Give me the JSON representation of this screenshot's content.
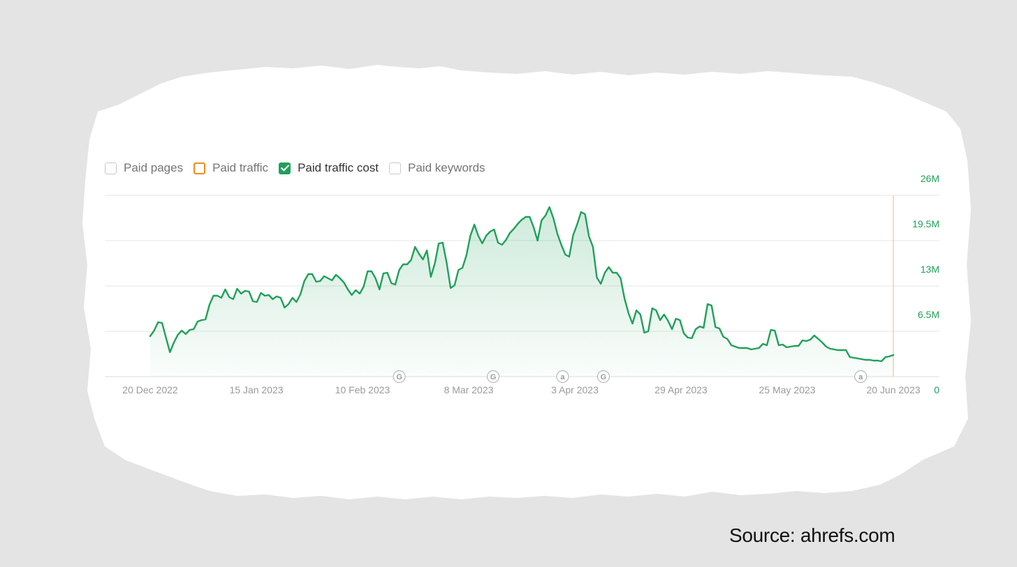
{
  "legend": {
    "items": [
      {
        "label": "Paid pages",
        "state": "unchecked",
        "color": "#c9c9c9"
      },
      {
        "label": "Paid traffic",
        "state": "unchecked",
        "color": "#f08c1c"
      },
      {
        "label": "Paid traffic cost",
        "state": "checked",
        "color": "#20a05a"
      },
      {
        "label": "Paid keywords",
        "state": "unchecked",
        "color": "#c9c9c9"
      }
    ]
  },
  "source_text": "Source: ahrefs.com",
  "colors": {
    "line": "#20a05a",
    "tick_y": "#20a05a",
    "tick_x": "#9a9a9a",
    "grid": "#e6e6e6",
    "marker_line": "#f2c48d",
    "background": "#e4e4e4",
    "card": "#ffffff"
  },
  "chart_data": {
    "type": "area",
    "series": [
      {
        "name": "Paid traffic cost",
        "x_start": "2022-12-20",
        "x_end": "2023-06-20",
        "values": [
          5.8,
          6.6,
          7.8,
          7.7,
          5.6,
          3.5,
          4.9,
          6,
          6.6,
          6.1,
          6.7,
          6.8,
          7.9,
          8.1,
          8.2,
          10.3,
          11.6,
          11.6,
          11.3,
          12.5,
          11.4,
          11.1,
          12.6,
          11.9,
          12.3,
          12.2,
          10.8,
          10.7,
          12,
          11.6,
          11.7,
          11.1,
          11.5,
          11.3,
          9.9,
          10.4,
          11.3,
          10.7,
          11.8,
          13.7,
          14.7,
          14.7,
          13.6,
          13.7,
          14.4,
          14.1,
          13.8,
          14.6,
          14.1,
          13.5,
          12.5,
          11.7,
          12.4,
          11.9,
          12.9,
          15.1,
          15.1,
          14.1,
          12.5,
          14.8,
          14.9,
          13.4,
          13.2,
          15.3,
          16.1,
          16.1,
          16.7,
          18.6,
          17.6,
          16.8,
          18.1,
          14.3,
          16.2,
          19.1,
          19.2,
          16.3,
          12.7,
          13.1,
          15.3,
          15.6,
          17.4,
          20.2,
          21.8,
          20.2,
          19.1,
          20.2,
          20.8,
          21.1,
          19.2,
          18.9,
          19.6,
          20.6,
          21.2,
          21.9,
          22.5,
          22.9,
          22.9,
          21.4,
          19.5,
          22.4,
          23.1,
          24.3,
          22.7,
          20.5,
          18.9,
          17.5,
          17.2,
          20.3,
          21.8,
          23.6,
          23.3,
          20.1,
          18.6,
          14.2,
          13.3,
          14.9,
          15.7,
          14.9,
          14.9,
          14.1,
          11.2,
          9.1,
          7.6,
          9.5,
          8.9,
          6.3,
          6.5,
          9.8,
          9.5,
          8.1,
          8.9,
          8,
          6.8,
          8.3,
          8.1,
          6.2,
          5.6,
          5.5,
          6.8,
          7.2,
          7,
          10.4,
          10.2,
          7.1,
          6.9,
          5.7,
          5.4,
          4.5,
          4.3,
          4.1,
          4.1,
          4.1,
          3.9,
          4,
          4.1,
          4.7,
          4.5,
          6.7,
          6.6,
          4.5,
          4.6,
          4.2,
          4.3,
          4.4,
          4.4,
          5.2,
          5.1,
          5.3,
          5.9,
          5.4,
          4.9,
          4.3,
          4,
          3.9,
          3.8,
          3.8,
          3.8,
          2.8,
          2.7,
          2.6,
          2.5,
          2.4,
          2.4,
          2.3,
          2.3,
          2.2,
          2.8,
          2.9,
          3.1
        ]
      }
    ],
    "xlabel": "",
    "ylabel": "",
    "y_ticks": [
      "26M",
      "19.5M",
      "13M",
      "6.5M",
      "0"
    ],
    "y_tick_values": [
      26,
      19.5,
      13,
      6.5,
      0
    ],
    "ylim": [
      0,
      26
    ],
    "y_unit": "M",
    "x_ticks": [
      {
        "date": "2022-12-20",
        "label": "20 Dec 2022"
      },
      {
        "date": "2023-01-15",
        "label": "15 Jan 2023"
      },
      {
        "date": "2023-02-10",
        "label": "10 Feb 2023"
      },
      {
        "date": "2023-03-08",
        "label": "8 Mar 2023"
      },
      {
        "date": "2023-04-03",
        "label": "3 Apr 2023"
      },
      {
        "date": "2023-04-29",
        "label": "29 Apr 2023"
      },
      {
        "date": "2023-05-25",
        "label": "25 May 2023"
      },
      {
        "date": "2023-06-20",
        "label": "20 Jun 2023"
      }
    ],
    "annotations": [
      {
        "date": "2023-02-19",
        "label": "G"
      },
      {
        "date": "2023-03-14",
        "label": "G"
      },
      {
        "date": "2023-03-31",
        "label": "a"
      },
      {
        "date": "2023-04-10",
        "label": "G"
      },
      {
        "date": "2023-06-12",
        "label": "a"
      }
    ],
    "grid": true,
    "legend_position": "top-left"
  }
}
